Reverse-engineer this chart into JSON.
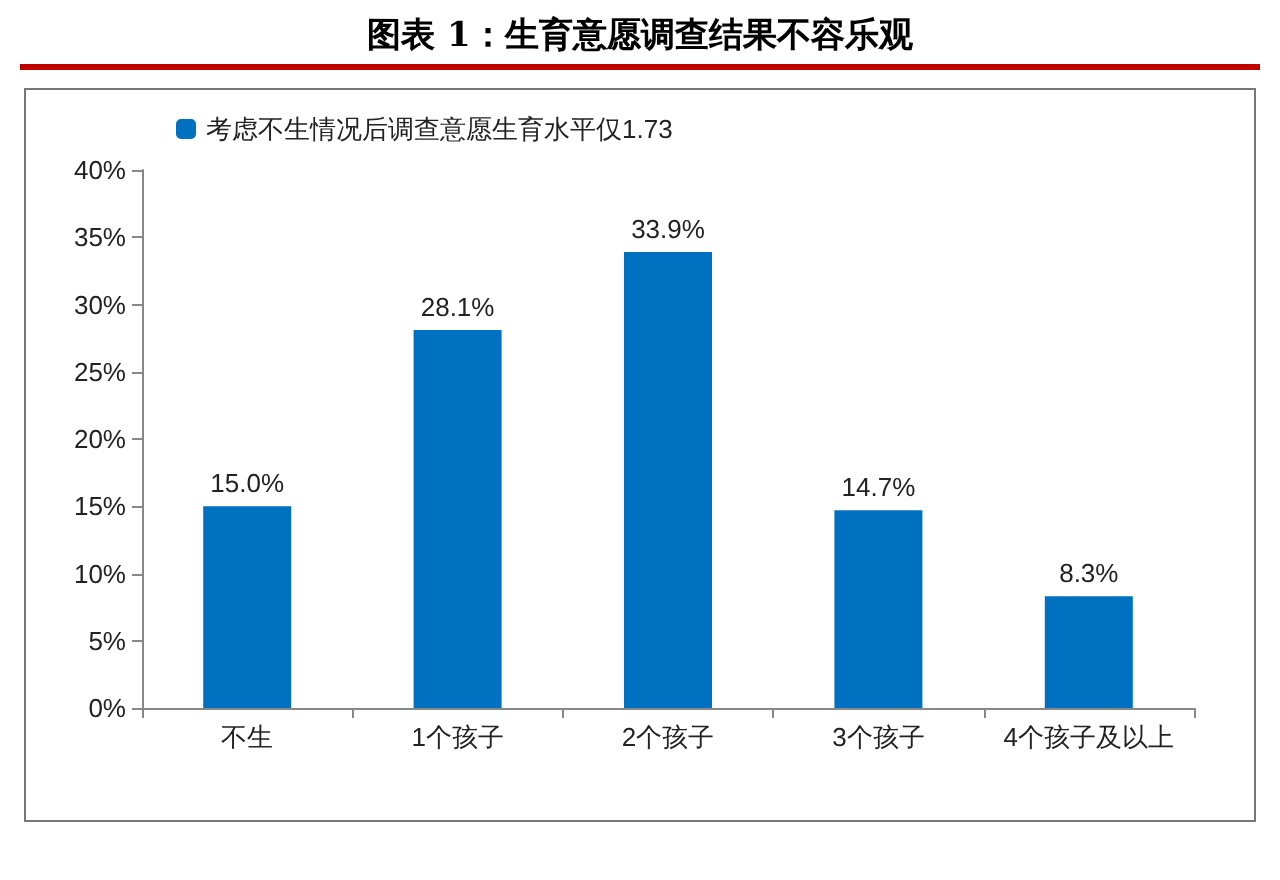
{
  "chart_data": {
    "type": "bar",
    "title": "图表 1：生育意愿调查结果不容乐观",
    "categories": [
      "不生",
      "1个孩子",
      "2个孩子",
      "3个孩子",
      "4个孩子及以上"
    ],
    "series": [
      {
        "name": "考虑不生情况后调查意愿生育水平仅1.73",
        "color": "#0070c0",
        "values": [
          15.0,
          28.1,
          33.9,
          14.7,
          8.3
        ],
        "value_labels": [
          "15.0%",
          "28.1%",
          "33.9%",
          "14.7%",
          "8.3%"
        ]
      }
    ],
    "ylim": [
      0,
      40
    ],
    "yticks": [
      {
        "value": 0,
        "label": "0%"
      },
      {
        "value": 5,
        "label": "5%"
      },
      {
        "value": 10,
        "label": "10%"
      },
      {
        "value": 15,
        "label": "15%"
      },
      {
        "value": 20,
        "label": "20%"
      },
      {
        "value": 25,
        "label": "25%"
      },
      {
        "value": 30,
        "label": "30%"
      },
      {
        "value": 35,
        "label": "35%"
      },
      {
        "value": 40,
        "label": "40%"
      }
    ],
    "grid": false,
    "legend": "top left"
  }
}
